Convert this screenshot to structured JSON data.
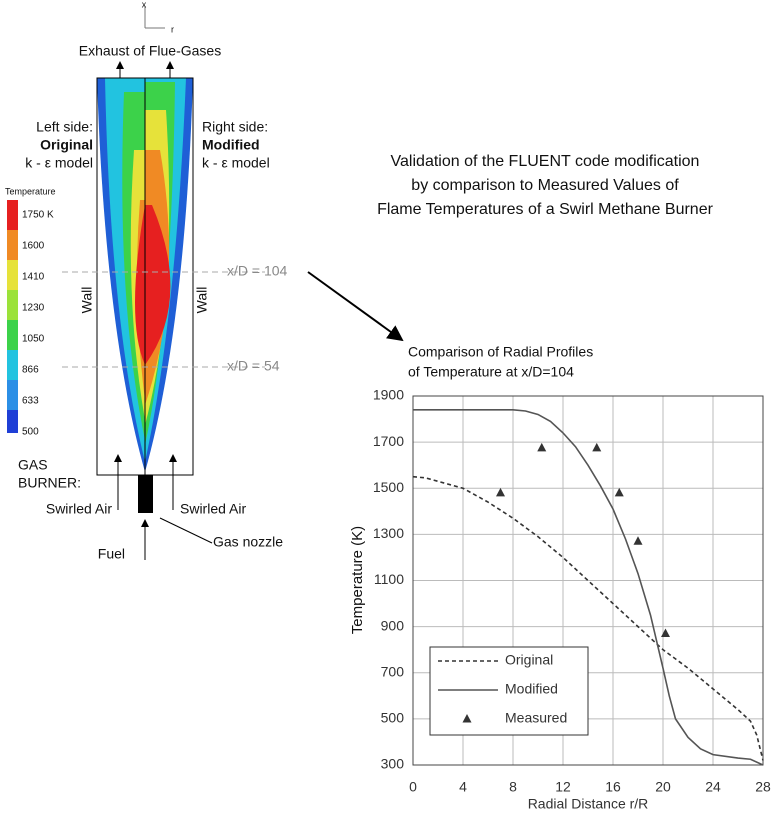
{
  "diagram": {
    "axis_x": "x",
    "axis_r": "r",
    "exhaust": "Exhaust of Flue-Gases",
    "left_side": {
      "line1": "Left side:",
      "line2": "Original",
      "line3": "k - ε model"
    },
    "right_side": {
      "line1": "Right side:",
      "line2": "Modified",
      "line3": "k - ε model"
    },
    "colorbar": {
      "title": "Temperature",
      "labels": [
        "1750 K",
        "1600",
        "1410",
        "1230",
        "1050",
        "866",
        "633",
        "500"
      ]
    },
    "section_upper": "x/D = 104",
    "section_lower": "x/D = 54",
    "wall_left": "Wall",
    "wall_right": "Wall",
    "burner": {
      "line1": "GAS",
      "line2": "BURNER:"
    },
    "swirled_air_left": "Swirled Air",
    "swirled_air_right": "Swirled Air",
    "fuel": "Fuel",
    "gas_nozzle": "Gas nozzle"
  },
  "caption": [
    "Validation of the FLUENT code modification",
    "by comparison to Measured Values of",
    "Flame Temperatures of a Swirl Methane Burner"
  ],
  "chart_data": {
    "type": "line",
    "title": "Comparison of Radial Profiles",
    "subtitle": "of Temperature at x/D=104",
    "xlabel": "Radial Distance r/R",
    "ylabel": "Temperature (K)",
    "xlim": [
      0,
      28
    ],
    "xticks": [
      0,
      4,
      8,
      12,
      16,
      20,
      24,
      28
    ],
    "ylim": [
      300,
      1900
    ],
    "yticks": [
      300,
      500,
      700,
      900,
      1100,
      1300,
      1500,
      1700,
      1900
    ],
    "grid": true,
    "series": [
      {
        "name": "Original",
        "style": "dashed",
        "color": "#333333",
        "x": [
          0,
          1,
          2,
          4,
          6,
          8,
          10,
          12,
          14,
          16,
          18,
          20,
          22,
          24,
          26,
          27,
          27.5,
          28
        ],
        "values": [
          1550,
          1545,
          1530,
          1500,
          1440,
          1370,
          1290,
          1200,
          1100,
          1000,
          900,
          800,
          720,
          630,
          540,
          490,
          430,
          320
        ]
      },
      {
        "name": "Modified",
        "style": "solid",
        "color": "#555555",
        "x": [
          0,
          7,
          8,
          9,
          10,
          11,
          12,
          13,
          14,
          15,
          16,
          17,
          18,
          19,
          20,
          20.5,
          21,
          22,
          23,
          24,
          26,
          27,
          28
        ],
        "values": [
          1840,
          1840,
          1840,
          1835,
          1820,
          1790,
          1740,
          1680,
          1600,
          1510,
          1410,
          1280,
          1130,
          950,
          720,
          600,
          500,
          420,
          370,
          345,
          330,
          325,
          300
        ]
      },
      {
        "name": "Measured",
        "style": "marker",
        "color": "#333333",
        "x": [
          7,
          10.3,
          14.7,
          16.5,
          18,
          20.2
        ],
        "values": [
          1480,
          1675,
          1675,
          1480,
          1270,
          870
        ]
      }
    ]
  }
}
